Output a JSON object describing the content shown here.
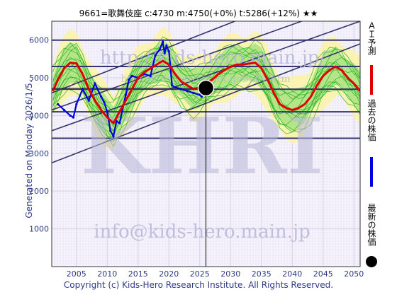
{
  "header": {
    "title": "9661=歌舞伎座    c:4730  m:4750(+0%)  t:5286(+12%)  ★★"
  },
  "side_label": "Generated on Monday 2026/1/5.",
  "footer": "Copyright (c) Kids-Hero Research Institute. All Rights Reserved.",
  "watermarks": {
    "url": "http://kids-hero.main.jp/",
    "big": "KHRI",
    "email": "info@kids-hero.main.jp",
    "url_small": "http://kids-hero.main.jp/9661.htm"
  },
  "legend": [
    {
      "label": "ＡＩ予測",
      "color": "#e00000",
      "shape": "bar"
    },
    {
      "label": "過去の株価",
      "color": "#0000e0",
      "shape": "bar"
    },
    {
      "label": "最新の株価",
      "color": "#000000",
      "shape": "dot"
    }
  ],
  "colors": {
    "plot_bg": "#f4f1fa",
    "grid": "#33366e",
    "axis_text": "#2f3a86",
    "band": "#fbf3a8",
    "green": "#22b422",
    "green_fill": "#9fe07c",
    "prediction": "#e00000",
    "history": "#0000e0",
    "watermark": "#b7b6d9"
  },
  "chart_data": {
    "type": "line",
    "title": "9661=歌舞伎座    c:4730  m:4750(+0%)  t:5286(+12%)  ★★",
    "xlabel": "",
    "ylabel": "",
    "xlim": [
      2001,
      2051
    ],
    "ylim": [
      0,
      6500
    ],
    "x_ticks": [
      2005,
      2010,
      2015,
      2020,
      2025,
      2030,
      2035,
      2040,
      2045,
      2050
    ],
    "y_ticks": [
      1000,
      2000,
      3000,
      4000,
      5000,
      6000
    ],
    "grid": true,
    "legend_position": "right",
    "current": {
      "x": 2026.0,
      "y": 4730
    },
    "horizontal_levels": [
      3400,
      4100,
      4700,
      5300,
      6000
    ],
    "channel_lines": [
      {
        "x": [
          2001,
          2051
        ],
        "y": [
          2750,
          5900
        ]
      },
      {
        "x": [
          2001,
          2051
        ],
        "y": [
          3600,
          6500
        ]
      },
      {
        "x": [
          2001,
          2051
        ],
        "y": [
          4150,
          7050
        ]
      },
      {
        "x": [
          2001,
          2051
        ],
        "y": [
          4600,
          7800
        ]
      }
    ],
    "series": [
      {
        "name": "過去の株価",
        "color": "#0000e0",
        "x": [
          2002,
          2003,
          2004,
          2004.5,
          2005,
          2006,
          2007,
          2008,
          2009,
          2009.5,
          2010,
          2010.5,
          2011,
          2011.5,
          2012,
          2013,
          2013.5,
          2014,
          2015,
          2016,
          2017,
          2017.8,
          2018.5,
          2019,
          2019.3,
          2019.6,
          2020,
          2020.5,
          2021,
          2022,
          2023,
          2024,
          2025,
          2025.3
        ],
        "y": [
          4300,
          4150,
          4000,
          3950,
          4300,
          4700,
          4400,
          4850,
          4500,
          4350,
          4100,
          3600,
          3450,
          3850,
          3800,
          4550,
          4950,
          5050,
          5000,
          5100,
          5050,
          5600,
          5750,
          5950,
          5650,
          5850,
          5700,
          4800,
          4750,
          4700,
          4650,
          4600,
          4550,
          4500
        ]
      },
      {
        "name": "ＡＩ予測",
        "color": "#e00000",
        "x": [
          2001.2,
          2002,
          2003,
          2004,
          2005,
          2006,
          2007,
          2008,
          2009,
          2010,
          2011,
          2012,
          2013,
          2014,
          2015,
          2016,
          2017,
          2018,
          2019,
          2020,
          2021,
          2022,
          2023,
          2024,
          2025,
          2026,
          2027,
          2028,
          2029,
          2030,
          2031,
          2032,
          2033,
          2034,
          2035,
          2036,
          2037,
          2038,
          2039,
          2040,
          2041,
          2042,
          2043,
          2044,
          2045,
          2046,
          2047,
          2048,
          2049,
          2050,
          2051
        ],
        "y": [
          4650,
          4950,
          5250,
          5400,
          5380,
          5100,
          4700,
          4400,
          4150,
          3950,
          3800,
          4100,
          4400,
          4700,
          5000,
          5150,
          5250,
          5350,
          5450,
          5350,
          5100,
          4900,
          4800,
          4700,
          4750,
          4850,
          4950,
          5100,
          5200,
          5300,
          5350,
          5350,
          5380,
          5400,
          5250,
          4950,
          4600,
          4300,
          4200,
          4150,
          4200,
          4300,
          4500,
          4800,
          5050,
          5200,
          5300,
          5200,
          5000,
          4850,
          4650
        ]
      }
    ]
  }
}
